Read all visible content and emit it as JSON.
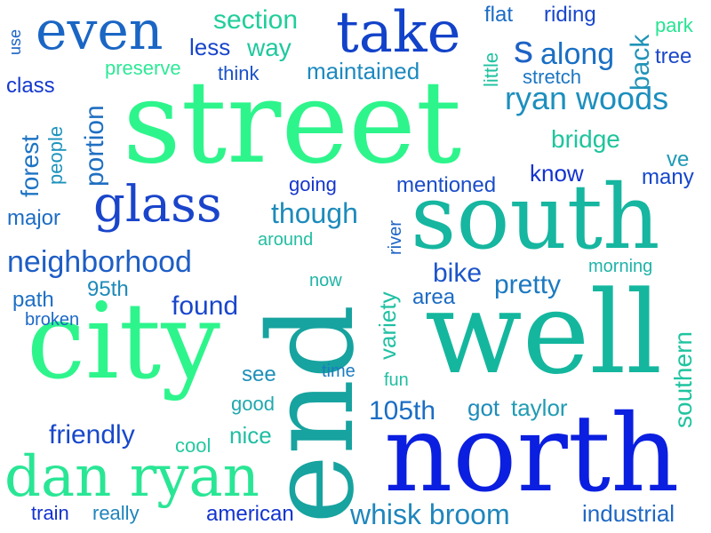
{
  "colors": {
    "background": "#ffffff",
    "palette": [
      "#0b1fe0",
      "#1a3fd0",
      "#1f5fc8",
      "#1f86c0",
      "#17a4ae",
      "#16b6a0",
      "#1fd79a",
      "#2df58c"
    ]
  },
  "words": [
    {
      "text": "street",
      "color": "#2df58c"
    },
    {
      "text": "south",
      "color": "#16b6a0"
    },
    {
      "text": "city",
      "color": "#2df58c"
    },
    {
      "text": "well",
      "color": "#14b79e"
    },
    {
      "text": "north",
      "color": "#0b1fe0"
    },
    {
      "text": "end",
      "color": "#17a39f"
    },
    {
      "text": "dan ryan",
      "color": "#29e695"
    },
    {
      "text": "take",
      "color": "#1242c9"
    },
    {
      "text": "even",
      "color": "#1a66c4"
    },
    {
      "text": "glass",
      "color": "#1a45cb"
    },
    {
      "text": "neighborhood",
      "color": "#1e5ec5"
    },
    {
      "text": "ryan woods",
      "color": "#1c8fbe"
    },
    {
      "text": "s",
      "color": "#1e62c6"
    },
    {
      "text": "along",
      "color": "#1a6fc4"
    },
    {
      "text": "section",
      "color": "#20ce9a"
    },
    {
      "text": "way",
      "color": "#1fc89d"
    },
    {
      "text": "less",
      "color": "#1846cb"
    },
    {
      "text": "flat",
      "color": "#1a6cc6"
    },
    {
      "text": "riding",
      "color": "#1846cb"
    },
    {
      "text": "park",
      "color": "#27e492"
    },
    {
      "text": "tree",
      "color": "#1c48c8"
    },
    {
      "text": "back",
      "color": "#2294b8"
    },
    {
      "text": "little",
      "color": "#20c2a0"
    },
    {
      "text": "stretch",
      "color": "#1c76c2"
    },
    {
      "text": "use",
      "color": "#1b63c6"
    },
    {
      "text": "preserve",
      "color": "#2de997"
    },
    {
      "text": "think",
      "color": "#1a52c8"
    },
    {
      "text": "maintained",
      "color": "#1c89bf"
    },
    {
      "text": "class",
      "color": "#1438d0"
    },
    {
      "text": "portion",
      "color": "#1f6fc2"
    },
    {
      "text": "forest",
      "color": "#1e74c3"
    },
    {
      "text": "people",
      "color": "#1c92bc"
    },
    {
      "text": "major",
      "color": "#1c6dc4"
    },
    {
      "text": "bridge",
      "color": "#1fc49c"
    },
    {
      "text": "ve",
      "color": "#1e9ab6"
    },
    {
      "text": "many",
      "color": "#1446cb"
    },
    {
      "text": "know",
      "color": "#1232d0"
    },
    {
      "text": "going",
      "color": "#1535cd"
    },
    {
      "text": "mentioned",
      "color": "#1a4dc9"
    },
    {
      "text": "though",
      "color": "#1e8bbb"
    },
    {
      "text": "around",
      "color": "#22bea1"
    },
    {
      "text": "river",
      "color": "#1c64c6"
    },
    {
      "text": "bike",
      "color": "#1d54c9"
    },
    {
      "text": "morning",
      "color": "#1fb3a9"
    },
    {
      "text": "pretty",
      "color": "#1c7ac1"
    },
    {
      "text": "area",
      "color": "#1b6bc5"
    },
    {
      "text": "path",
      "color": "#1d6fc4"
    },
    {
      "text": "95th",
      "color": "#1e8ab9"
    },
    {
      "text": "broken",
      "color": "#1b68c6"
    },
    {
      "text": "now",
      "color": "#1fb5a6"
    },
    {
      "text": "found",
      "color": "#1946cb"
    },
    {
      "text": "variety",
      "color": "#1fc0a3"
    },
    {
      "text": "southern",
      "color": "#1fc4a0"
    },
    {
      "text": "see",
      "color": "#1e90b9"
    },
    {
      "text": "time",
      "color": "#1c7cc1"
    },
    {
      "text": "good",
      "color": "#20a8ae"
    },
    {
      "text": "fun",
      "color": "#21bea3"
    },
    {
      "text": "105th",
      "color": "#1a6ec4"
    },
    {
      "text": "got",
      "color": "#1e8cbb"
    },
    {
      "text": "taylor",
      "color": "#1f9cb3"
    },
    {
      "text": "friendly",
      "color": "#1848cb"
    },
    {
      "text": "nice",
      "color": "#1fbea2"
    },
    {
      "text": "cool",
      "color": "#23c9a0"
    },
    {
      "text": "train",
      "color": "#1232cf"
    },
    {
      "text": "really",
      "color": "#1f84bc"
    },
    {
      "text": "american",
      "color": "#1234cf"
    },
    {
      "text": "whisk broom",
      "color": "#1f86bd"
    },
    {
      "text": "industrial",
      "color": "#1f68c4"
    }
  ]
}
